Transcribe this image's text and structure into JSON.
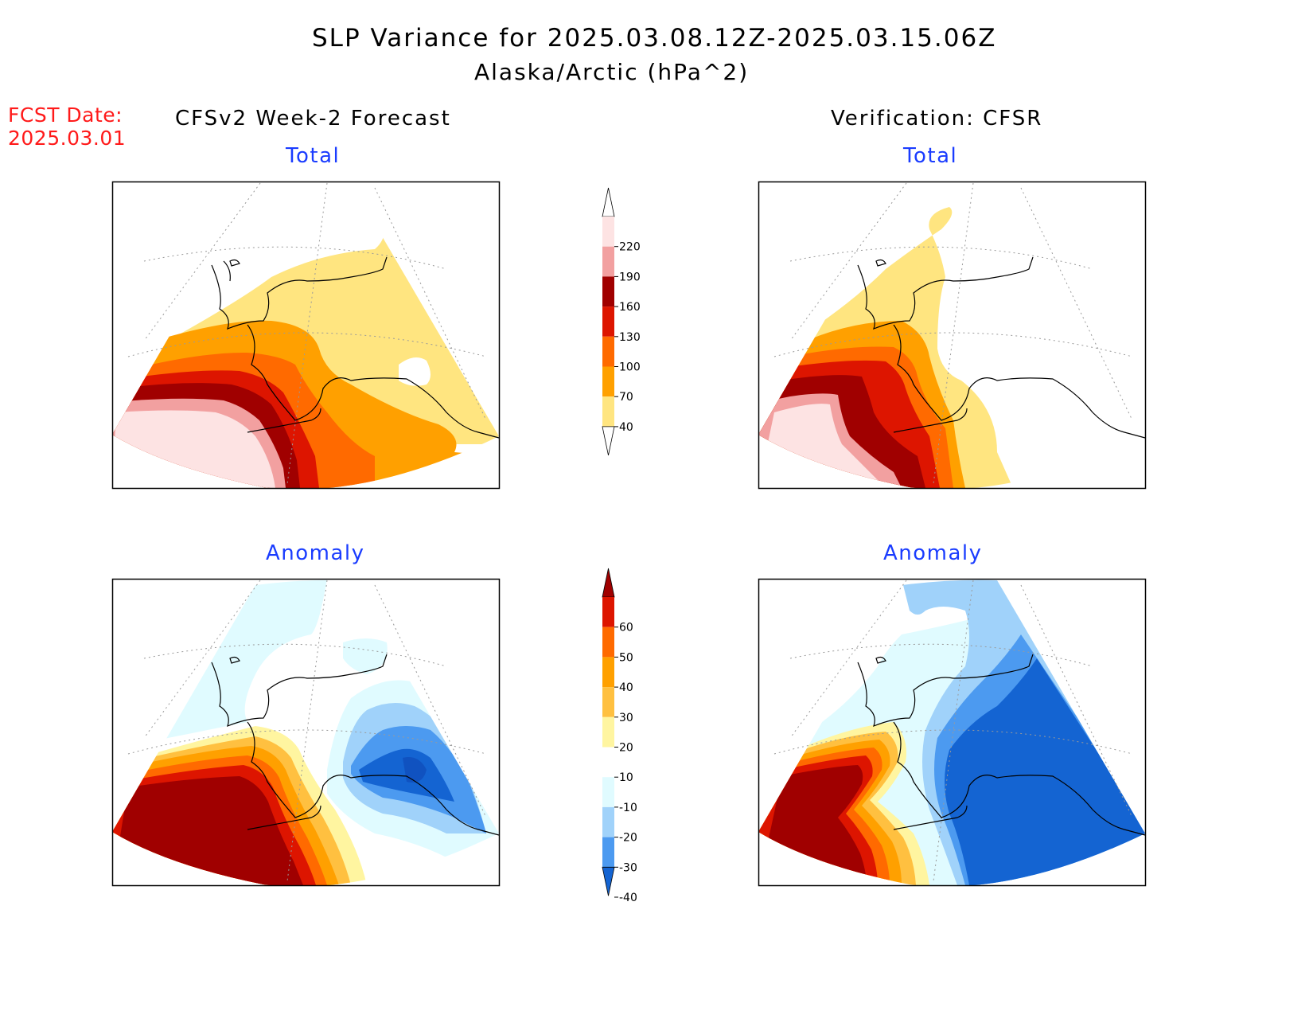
{
  "header": {
    "title": "SLP Variance for 2025.03.08.12Z-2025.03.15.06Z",
    "subtitle": "Alaska/Arctic (hPa^2)"
  },
  "fcst": {
    "label": "FCST Date:",
    "date": "2025.03.01"
  },
  "columns": {
    "left": "CFSv2 Week-2 Forecast",
    "right": "Verification: CFSR"
  },
  "panels": {
    "top_left": "Total",
    "top_right": "Total",
    "bottom_left": "Anomaly",
    "bottom_right": "Anomaly"
  },
  "colorbars": {
    "total": {
      "labels": [
        "220",
        "190",
        "160",
        "130",
        "100",
        "70",
        "40"
      ],
      "colors": [
        "#fde3e3",
        "#f2a0a0",
        "#a00000",
        "#dd1500",
        "#ff6a00",
        "#ffa000",
        "#ffe580"
      ]
    },
    "anomaly": {
      "labels": [
        "60",
        "50",
        "40",
        "30",
        "20",
        "10",
        "-10",
        "-20",
        "-30",
        "-40"
      ],
      "colors": [
        "#a00000",
        "#dd1500",
        "#ff6a00",
        "#ffa000",
        "#ffc040",
        "#fff5a0",
        "#ffffff",
        "#e0fbff",
        "#a0d2fa",
        "#4c9af0",
        "#1464d2"
      ]
    }
  }
}
